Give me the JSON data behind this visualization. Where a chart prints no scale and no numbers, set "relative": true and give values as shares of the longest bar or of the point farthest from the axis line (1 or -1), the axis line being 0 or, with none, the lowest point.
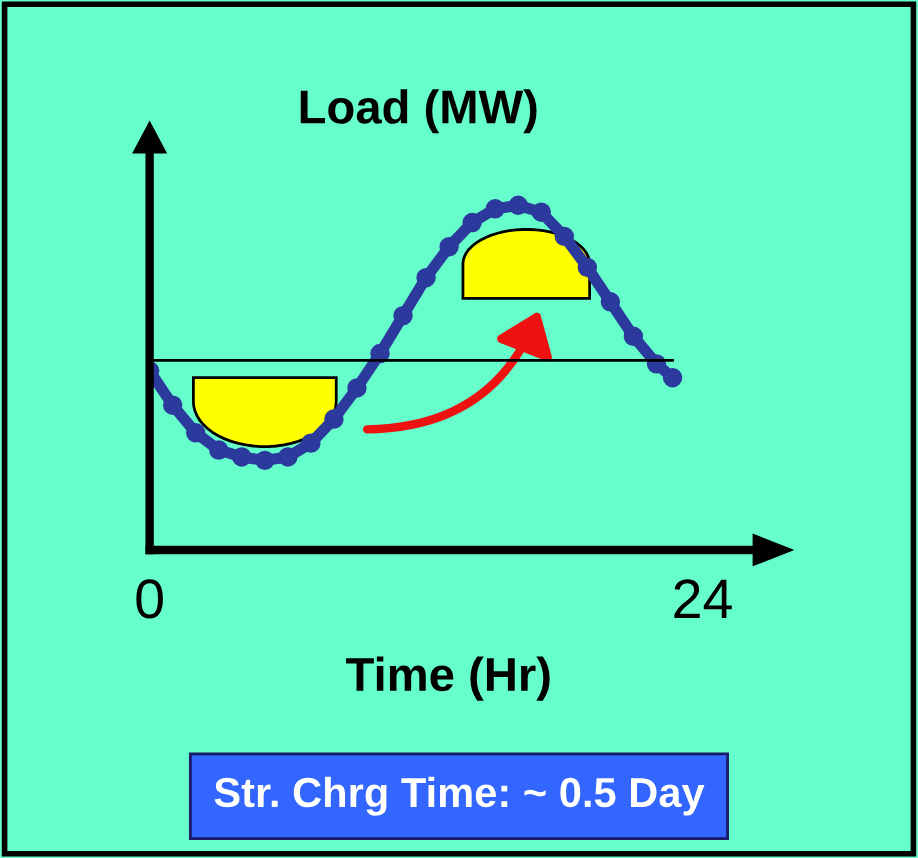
{
  "chart_data": {
    "type": "line",
    "relative": true,
    "ylabel": "Load (MW)",
    "xlabel": "Time (Hr)",
    "x": [
      0,
      1,
      2,
      3,
      4,
      5,
      6,
      7,
      8,
      9,
      10,
      11,
      12,
      13,
      14,
      15,
      16,
      17,
      18,
      19,
      20,
      21,
      22,
      22.7
    ],
    "series": [
      {
        "color": "#2b3a9c",
        "values": [
          0.52,
          0.42,
          0.34,
          0.29,
          0.27,
          0.26,
          0.27,
          0.31,
          0.38,
          0.47,
          0.57,
          0.68,
          0.79,
          0.88,
          0.95,
          0.99,
          1.0,
          0.98,
          0.91,
          0.82,
          0.72,
          0.62,
          0.54,
          0.5
        ]
      }
    ],
    "xlim": [
      0,
      26.5
    ],
    "xticks": [
      0,
      24
    ],
    "ref_lines": [
      {
        "axis": "y",
        "value": 0.55,
        "color": "#000000"
      }
    ],
    "marker": "circle",
    "line_style": "solid",
    "grid": false,
    "legend": false,
    "annotations": [
      "Str. Chrg Time: ~ 0.5 Day"
    ]
  }
}
